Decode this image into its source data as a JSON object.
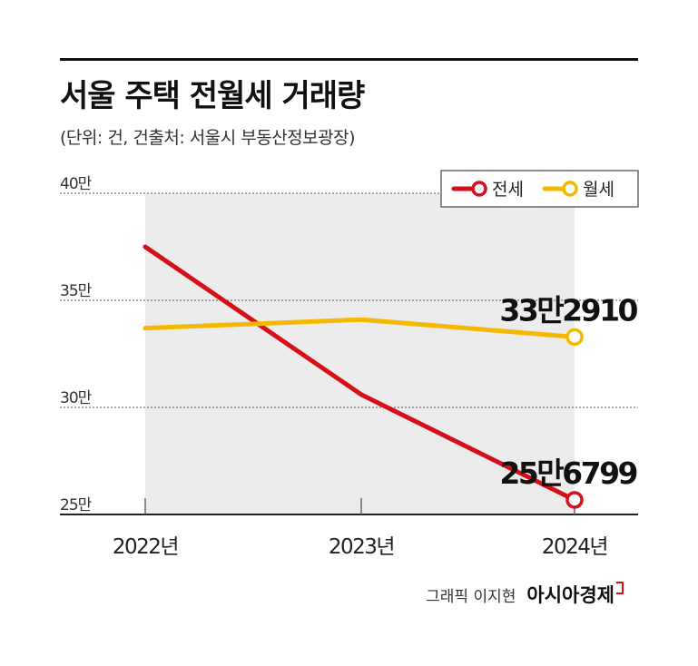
{
  "header": {
    "title": "서울 주택 전월세 거래량",
    "subtitle": "(단위: 건, 건출처: 서울시 부동산정보광장)"
  },
  "credit": {
    "graphic": "그래픽 이지현",
    "brand": "아시아경제"
  },
  "colors": {
    "jeonse": "#d6101b",
    "wolse": "#f5b800",
    "shade": "#ececec",
    "grid": "#555555"
  },
  "chart_data": {
    "type": "line",
    "categories": [
      "2022년",
      "2023년",
      "2024년"
    ],
    "y_ticks": [
      {
        "value": 400000,
        "label": "40만"
      },
      {
        "value": 350000,
        "label": "35만"
      },
      {
        "value": 300000,
        "label": "30만"
      },
      {
        "value": 250000,
        "label": "25만"
      }
    ],
    "ylim": [
      250000,
      400000
    ],
    "grid": true,
    "legend_position": "top-right",
    "series": [
      {
        "name": "전세",
        "color": "#d6101b",
        "values": [
          375000,
          306000,
          256799
        ],
        "end_label": "25만6799"
      },
      {
        "name": "월세",
        "color": "#f5b800",
        "values": [
          337000,
          341000,
          332910
        ],
        "end_label": "33만2910"
      }
    ]
  }
}
